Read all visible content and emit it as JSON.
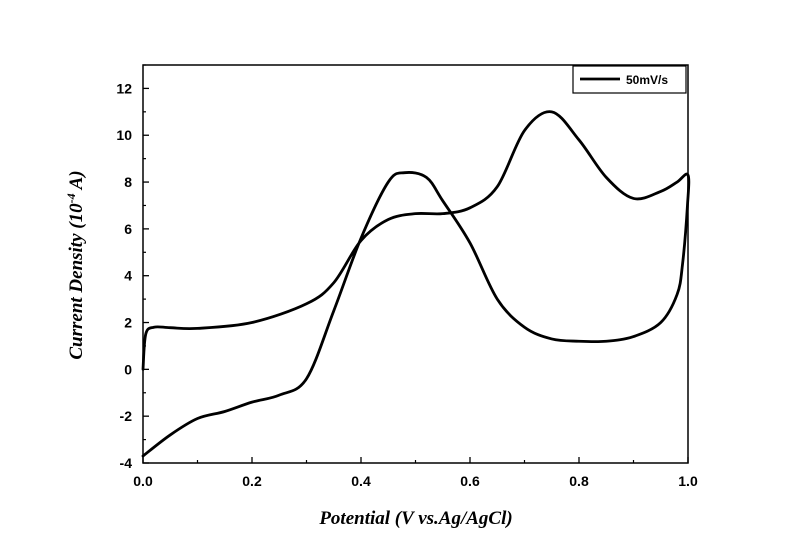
{
  "chart_data": {
    "type": "line",
    "xlabel": "Potential (V vs.Ag/AgCl)",
    "ylabel": {
      "prefix": "Current Density  (10",
      "superscript": "-4",
      "suffix": " A)"
    },
    "xlim": [
      0.0,
      1.0
    ],
    "ylim": [
      -4,
      13
    ],
    "x_ticks": [
      0.0,
      0.2,
      0.4,
      0.6,
      0.8,
      1.0
    ],
    "x_tick_labels": [
      "0.0",
      "0.2",
      "0.4",
      "0.6",
      "0.8",
      "1.0"
    ],
    "y_ticks": [
      -4,
      -2,
      0,
      2,
      4,
      6,
      8,
      10,
      12
    ],
    "y_tick_labels": [
      "-4",
      "-2",
      "0",
      "2",
      "4",
      "6",
      "8",
      "10",
      "12"
    ],
    "grid": false,
    "legend_position": "top-right",
    "series": [
      {
        "name": "50mV/s",
        "color": "#000000",
        "x": [
          0.0,
          0.005,
          0.02,
          0.05,
          0.1,
          0.2,
          0.3,
          0.35,
          0.4,
          0.45,
          0.5,
          0.55,
          0.6,
          0.65,
          0.7,
          0.75,
          0.8,
          0.85,
          0.9,
          0.95,
          0.98,
          1.0,
          0.999,
          0.99,
          0.98,
          0.95,
          0.9,
          0.85,
          0.8,
          0.75,
          0.7,
          0.65,
          0.6,
          0.55,
          0.52,
          0.48,
          0.45,
          0.4,
          0.35,
          0.3,
          0.25,
          0.2,
          0.15,
          0.1,
          0.05,
          0.0
        ],
        "y": [
          0.0,
          1.5,
          1.8,
          1.78,
          1.75,
          2.0,
          2.8,
          3.7,
          5.5,
          6.4,
          6.65,
          6.65,
          6.9,
          7.8,
          10.2,
          11.0,
          9.8,
          8.2,
          7.3,
          7.6,
          8.0,
          8.3,
          7.0,
          4.5,
          3.2,
          2.0,
          1.4,
          1.2,
          1.2,
          1.3,
          1.8,
          3.0,
          5.4,
          7.2,
          8.2,
          8.4,
          8.0,
          5.6,
          2.5,
          -0.4,
          -1.1,
          -1.4,
          -1.8,
          -2.1,
          -2.8,
          -3.7
        ]
      }
    ]
  }
}
